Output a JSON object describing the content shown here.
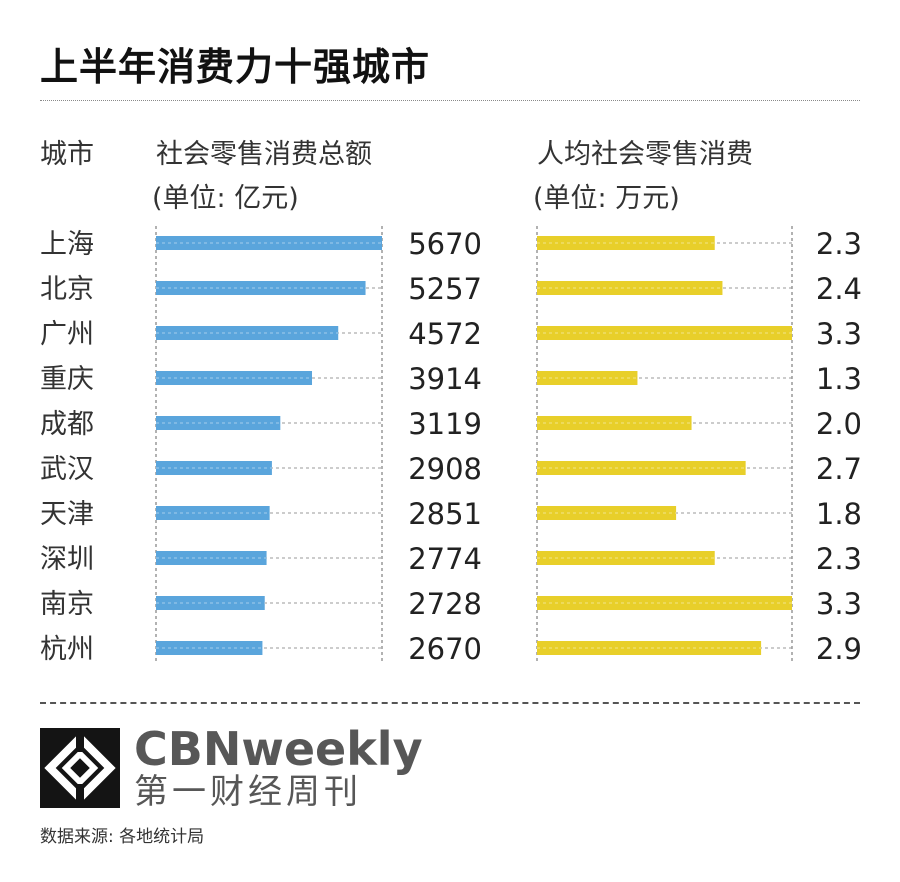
{
  "title": "上半年消费力十强城市",
  "headers": {
    "city": "城市",
    "total": "社会零售消费总额",
    "total_unit": "(单位: 亿元)",
    "per_capita": "人均社会零售消费",
    "per_capita_unit": "(单位: 万元)"
  },
  "colors": {
    "total_bar": "#5aa5dc",
    "per_capita_bar": "#e8cf2a",
    "guide": "#9a9a9a"
  },
  "chart_data": [
    {
      "type": "bar",
      "orientation": "horizontal",
      "title": "社会零售消费总额",
      "unit": "(单位: 亿元)",
      "categories": [
        "上海",
        "北京",
        "广州",
        "重庆",
        "成都",
        "武汉",
        "天津",
        "深圳",
        "南京",
        "杭州"
      ],
      "values": [
        5670,
        5257,
        4572,
        3914,
        3119,
        2908,
        2851,
        2774,
        2728,
        2670
      ],
      "xlim": [
        0,
        5670
      ]
    },
    {
      "type": "bar",
      "orientation": "horizontal",
      "title": "人均社会零售消费",
      "unit": "(单位: 万元)",
      "categories": [
        "上海",
        "北京",
        "广州",
        "重庆",
        "成都",
        "武汉",
        "天津",
        "深圳",
        "南京",
        "杭州"
      ],
      "values": [
        2.3,
        2.4,
        3.3,
        1.3,
        2.0,
        2.7,
        1.8,
        2.3,
        3.3,
        2.9
      ],
      "value_labels": [
        "2.3",
        "2.4",
        "3.3",
        "1.3",
        "2.0",
        "2.7",
        "1.8",
        "2.3",
        "3.3",
        "2.9"
      ],
      "xlim": [
        0,
        3.3
      ]
    }
  ],
  "footer": {
    "brand": "CBNweekly",
    "brand_cn": "第一财经周刊",
    "logo_icon": "cbn-logo-icon",
    "source": "数据来源: 各地统计局"
  }
}
